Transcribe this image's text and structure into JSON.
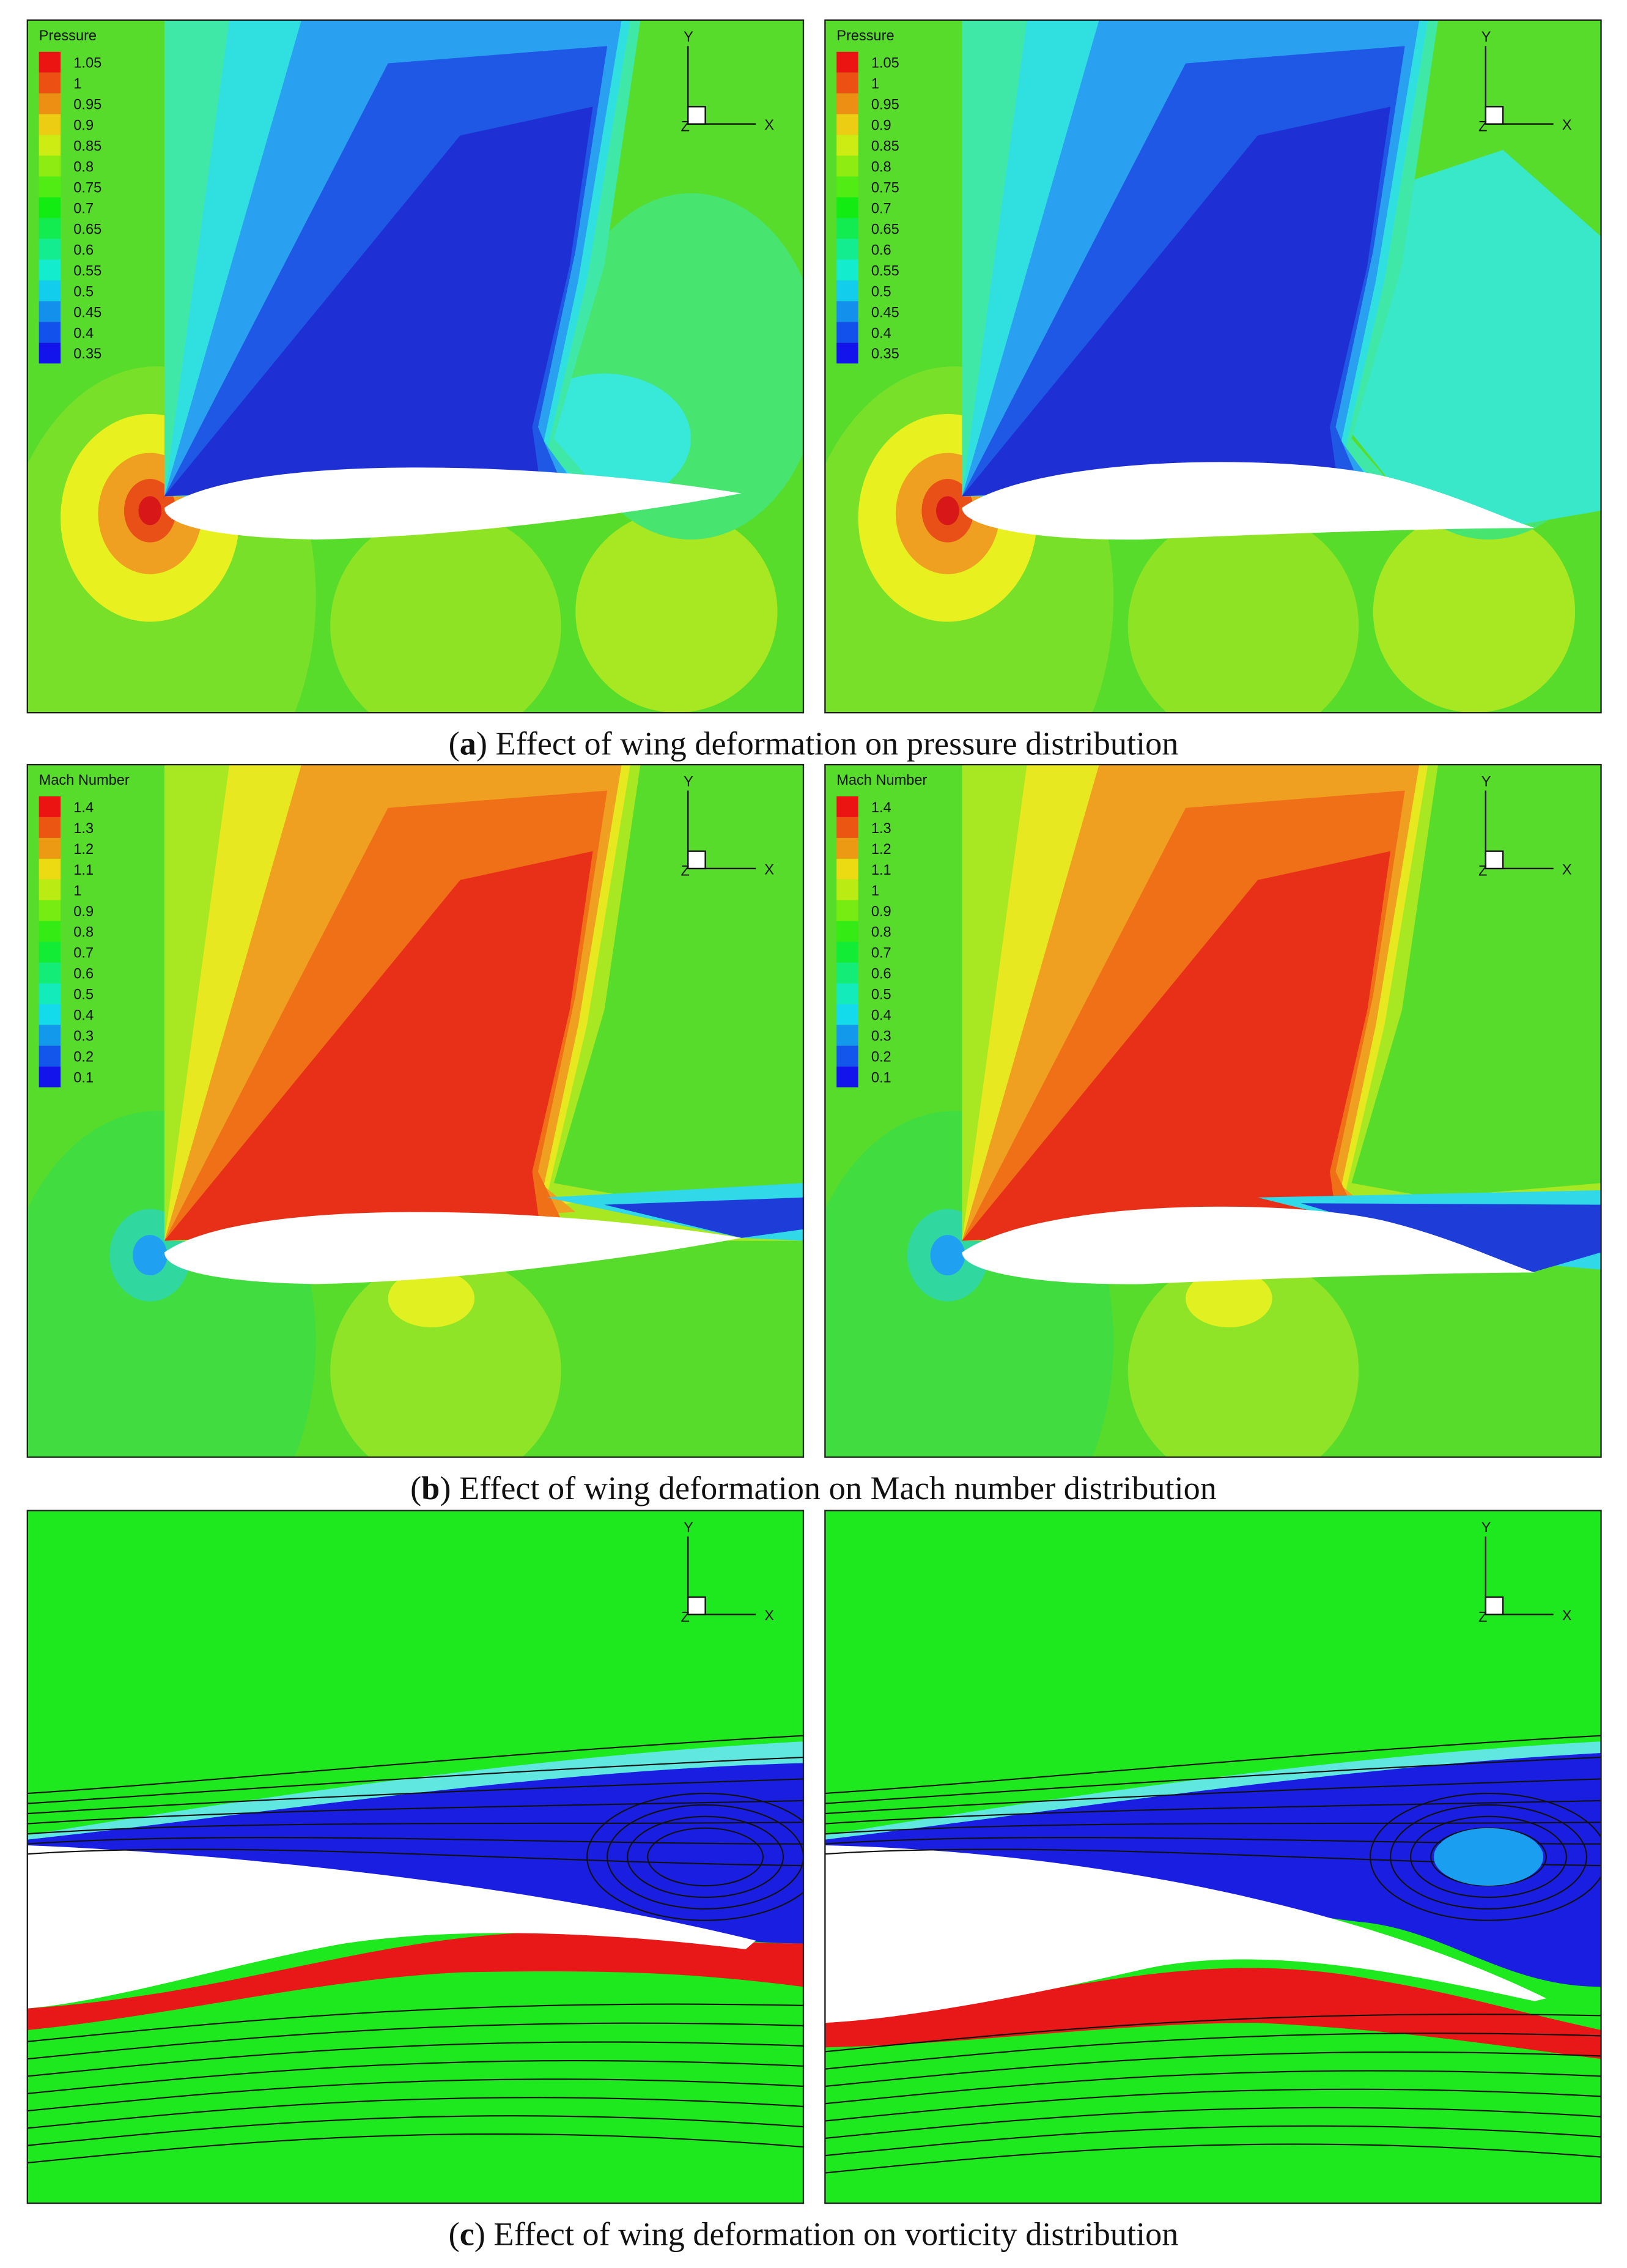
{
  "axis_triad": {
    "y": "Y",
    "x": "X",
    "z": "Z"
  },
  "panels": [
    {
      "caption": {
        "open": "(",
        "label": "a",
        "text": ") Effect of wing deformation on pressure distribution"
      },
      "legend": {
        "title": "Pressure",
        "levels": [
          1.05,
          1,
          0.95,
          0.9,
          0.85,
          0.8,
          0.75,
          0.7,
          0.65,
          0.6,
          0.55,
          0.5,
          0.45,
          0.4,
          0.35
        ]
      }
    },
    {
      "caption": {
        "open": "(",
        "label": "b",
        "text": ") Effect of wing deformation on Mach number distribution"
      },
      "legend": {
        "title": "Mach Number",
        "levels": [
          1.4,
          1.3,
          1.2,
          1.1,
          1,
          0.9,
          0.8,
          0.7,
          0.6,
          0.5,
          0.4,
          0.3,
          0.2,
          0.1
        ]
      }
    },
    {
      "caption": {
        "open": "(",
        "label": "c",
        "text": ") Effect of wing deformation on vorticity distribution"
      }
    }
  ]
}
